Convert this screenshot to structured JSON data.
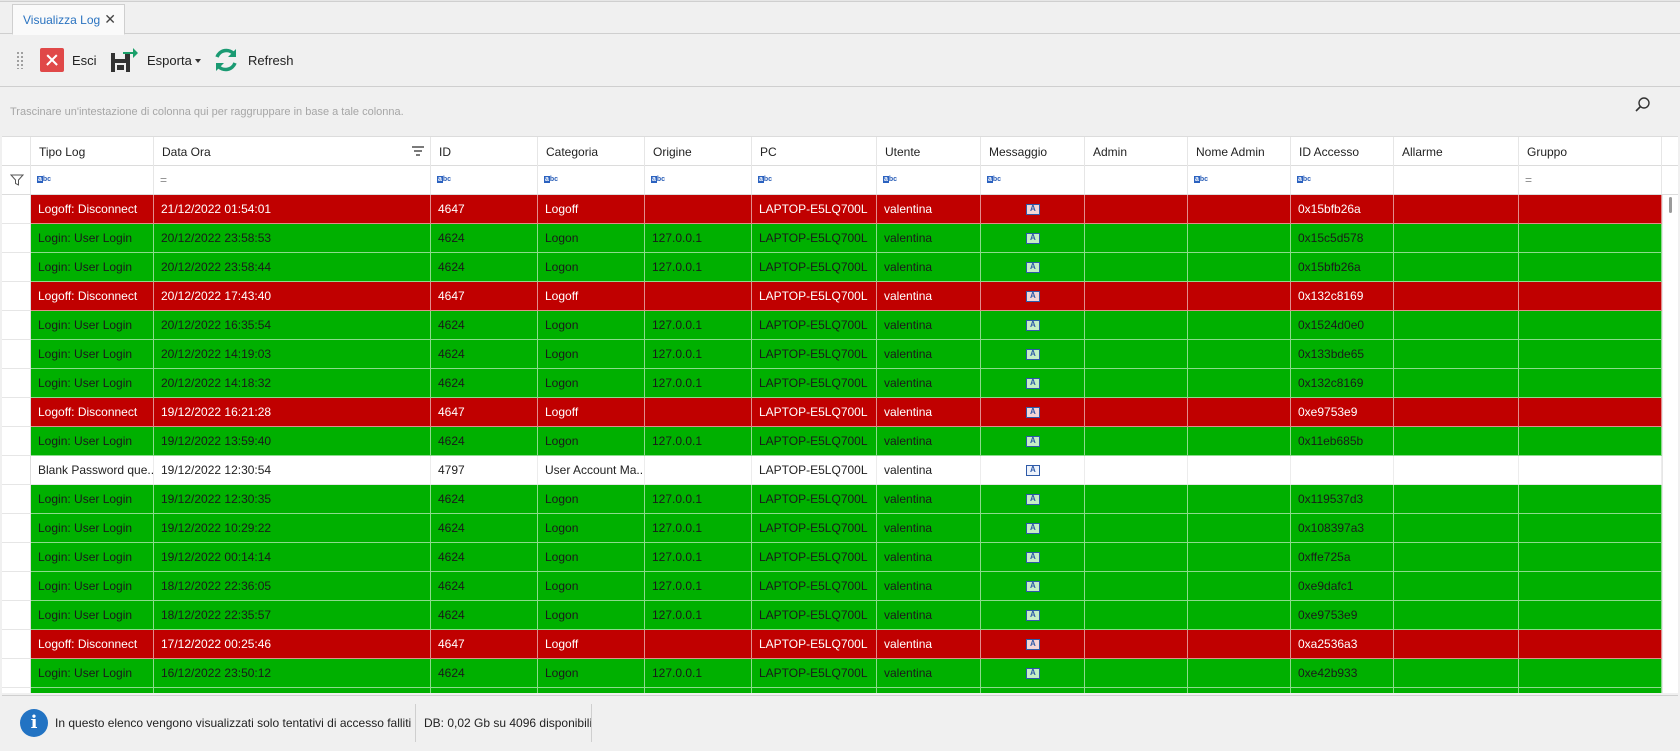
{
  "tab": {
    "title": "Visualizza Log",
    "close_glyph": "✕"
  },
  "toolbar": {
    "exit_label": "Esci",
    "export_label": "Esporta",
    "refresh_label": "Refresh"
  },
  "group_panel": {
    "hint": "Trascinare un'intestazione di colonna qui per raggruppare in base a tale colonna."
  },
  "columns": [
    {
      "key": "tipo",
      "label": "Tipo Log",
      "filter": "abc"
    },
    {
      "key": "data",
      "label": "Data Ora",
      "filter": "eq"
    },
    {
      "key": "id",
      "label": "ID",
      "filter": "abc"
    },
    {
      "key": "cat",
      "label": "Categoria",
      "filter": "abc"
    },
    {
      "key": "orig",
      "label": "Origine",
      "filter": "abc"
    },
    {
      "key": "pc",
      "label": "PC",
      "filter": "abc"
    },
    {
      "key": "utente",
      "label": "Utente",
      "filter": "abc"
    },
    {
      "key": "msg",
      "label": "Messaggio",
      "filter": "abc"
    },
    {
      "key": "admin",
      "label": "Admin",
      "filter": ""
    },
    {
      "key": "nomeadmin",
      "label": "Nome Admin",
      "filter": "abc"
    },
    {
      "key": "idacc",
      "label": "ID Accesso",
      "filter": "abc"
    },
    {
      "key": "allarme",
      "label": "Allarme",
      "filter": ""
    },
    {
      "key": "gruppo",
      "label": "Gruppo",
      "filter": "eq"
    }
  ],
  "rows": [
    {
      "status": "red",
      "tipo": "Logoff: Disconnect",
      "data": "21/12/2022 01:54:01",
      "id": "4647",
      "cat": "Logoff",
      "orig": "",
      "pc": "LAPTOP-E5LQ700L",
      "utente": "valentina",
      "idacc": "0x15bfb26a"
    },
    {
      "status": "green",
      "tipo": "Login: User Login",
      "data": "20/12/2022 23:58:53",
      "id": "4624",
      "cat": "Logon",
      "orig": "127.0.0.1",
      "pc": "LAPTOP-E5LQ700L",
      "utente": "valentina",
      "idacc": "0x15c5d578"
    },
    {
      "status": "green",
      "tipo": "Login: User Login",
      "data": "20/12/2022 23:58:44",
      "id": "4624",
      "cat": "Logon",
      "orig": "127.0.0.1",
      "pc": "LAPTOP-E5LQ700L",
      "utente": "valentina",
      "idacc": "0x15bfb26a"
    },
    {
      "status": "red",
      "tipo": "Logoff: Disconnect",
      "data": "20/12/2022 17:43:40",
      "id": "4647",
      "cat": "Logoff",
      "orig": "",
      "pc": "LAPTOP-E5LQ700L",
      "utente": "valentina",
      "idacc": "0x132c8169"
    },
    {
      "status": "green",
      "tipo": "Login: User Login",
      "data": "20/12/2022 16:35:54",
      "id": "4624",
      "cat": "Logon",
      "orig": "127.0.0.1",
      "pc": "LAPTOP-E5LQ700L",
      "utente": "valentina",
      "idacc": "0x1524d0e0"
    },
    {
      "status": "green",
      "tipo": "Login: User Login",
      "data": "20/12/2022 14:19:03",
      "id": "4624",
      "cat": "Logon",
      "orig": "127.0.0.1",
      "pc": "LAPTOP-E5LQ700L",
      "utente": "valentina",
      "idacc": "0x133bde65"
    },
    {
      "status": "green",
      "tipo": "Login: User Login",
      "data": "20/12/2022 14:18:32",
      "id": "4624",
      "cat": "Logon",
      "orig": "127.0.0.1",
      "pc": "LAPTOP-E5LQ700L",
      "utente": "valentina",
      "idacc": "0x132c8169"
    },
    {
      "status": "red",
      "tipo": "Logoff: Disconnect",
      "data": "19/12/2022 16:21:28",
      "id": "4647",
      "cat": "Logoff",
      "orig": "",
      "pc": "LAPTOP-E5LQ700L",
      "utente": "valentina",
      "idacc": "0xe9753e9"
    },
    {
      "status": "green",
      "tipo": "Login: User Login",
      "data": "19/12/2022 13:59:40",
      "id": "4624",
      "cat": "Logon",
      "orig": "127.0.0.1",
      "pc": "LAPTOP-E5LQ700L",
      "utente": "valentina",
      "idacc": "0x11eb685b"
    },
    {
      "status": "white",
      "tipo": "Blank Password que...",
      "data": "19/12/2022 12:30:54",
      "id": "4797",
      "cat": "User Account Ma...",
      "orig": "",
      "pc": "LAPTOP-E5LQ700L",
      "utente": "valentina",
      "idacc": ""
    },
    {
      "status": "green",
      "tipo": "Login: User Login",
      "data": "19/12/2022 12:30:35",
      "id": "4624",
      "cat": "Logon",
      "orig": "127.0.0.1",
      "pc": "LAPTOP-E5LQ700L",
      "utente": "valentina",
      "idacc": "0x119537d3"
    },
    {
      "status": "green",
      "tipo": "Login: User Login",
      "data": "19/12/2022 10:29:22",
      "id": "4624",
      "cat": "Logon",
      "orig": "127.0.0.1",
      "pc": "LAPTOP-E5LQ700L",
      "utente": "valentina",
      "idacc": "0x108397a3"
    },
    {
      "status": "green",
      "tipo": "Login: User Login",
      "data": "19/12/2022 00:14:14",
      "id": "4624",
      "cat": "Logon",
      "orig": "127.0.0.1",
      "pc": "LAPTOP-E5LQ700L",
      "utente": "valentina",
      "idacc": "0xffe725a"
    },
    {
      "status": "green",
      "tipo": "Login: User Login",
      "data": "18/12/2022 22:36:05",
      "id": "4624",
      "cat": "Logon",
      "orig": "127.0.0.1",
      "pc": "LAPTOP-E5LQ700L",
      "utente": "valentina",
      "idacc": "0xe9dafc1"
    },
    {
      "status": "green",
      "tipo": "Login: User Login",
      "data": "18/12/2022 22:35:57",
      "id": "4624",
      "cat": "Logon",
      "orig": "127.0.0.1",
      "pc": "LAPTOP-E5LQ700L",
      "utente": "valentina",
      "idacc": "0xe9753e9"
    },
    {
      "status": "red",
      "tipo": "Logoff: Disconnect",
      "data": "17/12/2022 00:25:46",
      "id": "4647",
      "cat": "Logoff",
      "orig": "",
      "pc": "LAPTOP-E5LQ700L",
      "utente": "valentina",
      "idacc": "0xa2536a3"
    },
    {
      "status": "green",
      "tipo": "Login: User Login",
      "data": "16/12/2022 23:50:12",
      "id": "4624",
      "cat": "Logon",
      "orig": "127.0.0.1",
      "pc": "LAPTOP-E5LQ700L",
      "utente": "valentina",
      "idacc": "0xe42b933"
    },
    {
      "status": "green",
      "tipo": "",
      "data": "",
      "id": "",
      "cat": "",
      "orig": "",
      "pc": "",
      "utente": "",
      "idacc": ""
    }
  ],
  "status_bar": {
    "info_text": "In questo elenco vengono visualizzati solo tentativi di accesso falliti",
    "db_text": "DB: 0,02 Gb su 4096 disponibili"
  },
  "colors": {
    "red_row": "#c00000",
    "green_row": "#00b000",
    "accent": "#2273c3"
  },
  "icons": {
    "exit": "exit-icon",
    "export": "save-export-icon",
    "refresh": "refresh-icon",
    "search": "search-icon",
    "filter": "funnel-icon",
    "info": "info-icon",
    "message": "message-icon"
  }
}
